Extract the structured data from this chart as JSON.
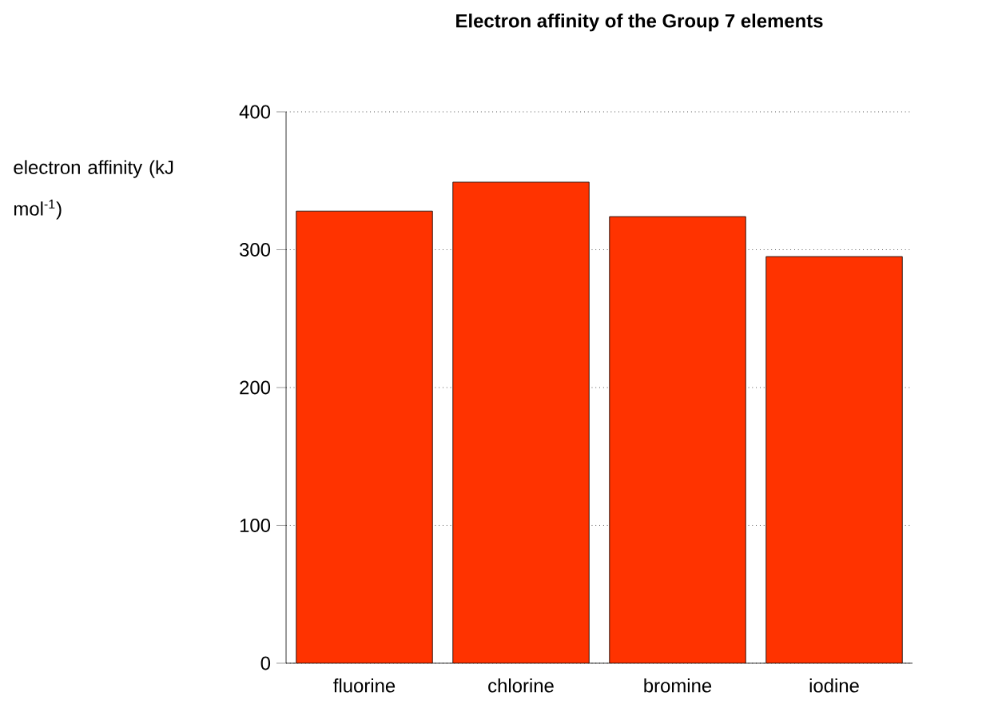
{
  "chart_data": {
    "type": "bar",
    "title": "Electron affinity of the Group 7 elements",
    "ylabel": "electron affinity (kJ mol$^{-1}$)",
    "categories": [
      "fluorine",
      "chlorine",
      "bromine",
      "iodine"
    ],
    "values": [
      328,
      349,
      324,
      295
    ],
    "color": "#ff3300",
    "ylim": [
      0,
      400
    ],
    "yticks": [
      0,
      100,
      200,
      300,
      400
    ],
    "grid": "y"
  }
}
